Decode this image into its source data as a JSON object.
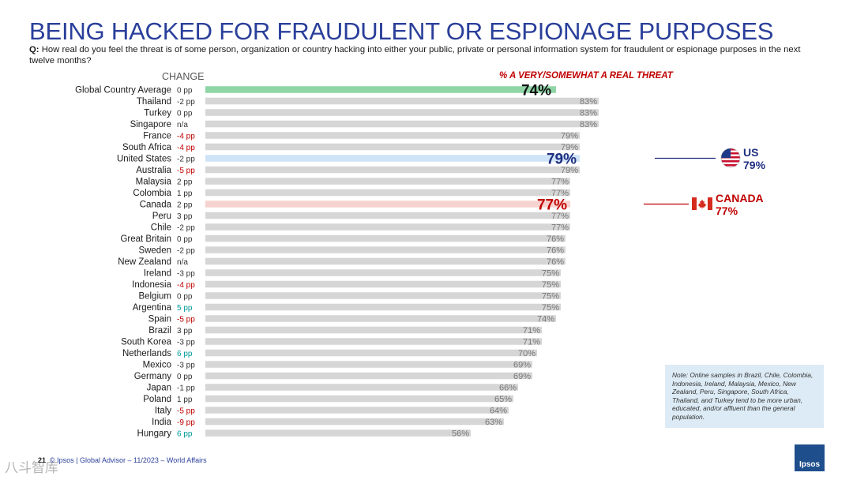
{
  "title": "BEING HACKED FOR FRAUDULENT OR ESPIONAGE PURPOSES",
  "question": {
    "prefix": "Q:",
    "text": "How real do you feel the threat is of some person, organization or country hacking into either your public, private or personal information system for fraudulent or espionage purposes in the next twelve months?"
  },
  "column_header_change": "CHANGE",
  "metric_header": "% A VERY/SOMEWHAT A REAL THREAT",
  "callouts": {
    "us": {
      "label": "US",
      "value": "79%",
      "color": "#1f2f80"
    },
    "canada": {
      "label": "CANADA",
      "value": "77%",
      "color": "#c00000"
    }
  },
  "note": "Note: Online samples in Brazil, Chile, Colombia, Indonesia, Ireland, Malaysia, Mexico, New Zealand, Peru, Singapore, South Africa, Thailand, and Turkey tend to be more urban, educated, and/or affluent than the general population.",
  "footer": {
    "page": "21",
    "text": "© Ipsos | Global Advisor – 11/2023 – World Affairs"
  },
  "watermark": "八斗智库",
  "logo": "Ipsos",
  "colors": {
    "bar_default": "#d6d6d6",
    "bar_global": "#8fd5a6",
    "bar_us": "#cfe3f7",
    "bar_canada": "#f7d3cf",
    "change_negative": "#c00000",
    "change_positive": "#009999",
    "change_neutral": "#333333",
    "title": "#2a3f9a"
  },
  "chart_data": {
    "type": "bar",
    "orientation": "horizontal",
    "title": "BEING HACKED FOR FRAUDULENT OR ESPIONAGE PURPOSES",
    "xlabel": "% A VERY/SOMEWHAT A REAL THREAT",
    "ylabel": "",
    "xlim": [
      0,
      100
    ],
    "grid": false,
    "categories": [
      "Global Country Average",
      "Thailand",
      "Turkey",
      "Singapore",
      "France",
      "South Africa",
      "United States",
      "Australia",
      "Malaysia",
      "Colombia",
      "Canada",
      "Peru",
      "Chile",
      "Great Britain",
      "Sweden",
      "New Zealand",
      "Ireland",
      "Indonesia",
      "Belgium",
      "Argentina",
      "Spain",
      "Brazil",
      "South Korea",
      "Netherlands",
      "Mexico",
      "Germany",
      "Japan",
      "Poland",
      "Italy",
      "India",
      "Hungary"
    ],
    "values": [
      74,
      83,
      83,
      83,
      79,
      79,
      79,
      79,
      77,
      77,
      77,
      77,
      77,
      76,
      76,
      76,
      75,
      75,
      75,
      75,
      74,
      71,
      71,
      70,
      69,
      69,
      66,
      65,
      64,
      63,
      56
    ],
    "value_labels": [
      "74%",
      "83%",
      "83%",
      "83%",
      "79%",
      "79%",
      "79%",
      "79%",
      "77%",
      "77%",
      "77%",
      "77%",
      "77%",
      "76%",
      "76%",
      "76%",
      "75%",
      "75%",
      "75%",
      "75%",
      "74%",
      "71%",
      "71%",
      "70%",
      "69%",
      "69%",
      "66%",
      "65%",
      "64%",
      "63%",
      "56%"
    ],
    "change": [
      "0 pp",
      "-2 pp",
      "0 pp",
      "n/a",
      "-4 pp",
      "-4 pp",
      "-2 pp",
      "-5 pp",
      "2 pp",
      "1 pp",
      "2 pp",
      "3 pp",
      "-2 pp",
      "0 pp",
      "-2 pp",
      "n/a",
      "-3 pp",
      "-4 pp",
      "0 pp",
      "5 pp",
      "-5 pp",
      "3 pp",
      "-3 pp",
      "6 pp",
      "-3 pp",
      "0 pp",
      "-1 pp",
      "1 pp",
      "-5 pp",
      "-9 pp",
      "6 pp"
    ],
    "change_status": [
      "neutral",
      "neutral",
      "neutral",
      "neutral",
      "negative",
      "negative",
      "neutral",
      "negative",
      "neutral",
      "neutral",
      "neutral",
      "neutral",
      "neutral",
      "neutral",
      "neutral",
      "neutral",
      "neutral",
      "negative",
      "neutral",
      "positive",
      "negative",
      "neutral",
      "neutral",
      "positive",
      "neutral",
      "neutral",
      "neutral",
      "neutral",
      "negative",
      "negative",
      "positive"
    ],
    "highlight": [
      "global",
      "",
      "",
      "",
      "",
      "",
      "us",
      "",
      "",
      "",
      "canada",
      "",
      "",
      "",
      "",
      "",
      "",
      "",
      "",
      "",
      "",
      "",
      "",
      "",
      "",
      "",
      "",
      "",
      "",
      "",
      ""
    ]
  }
}
